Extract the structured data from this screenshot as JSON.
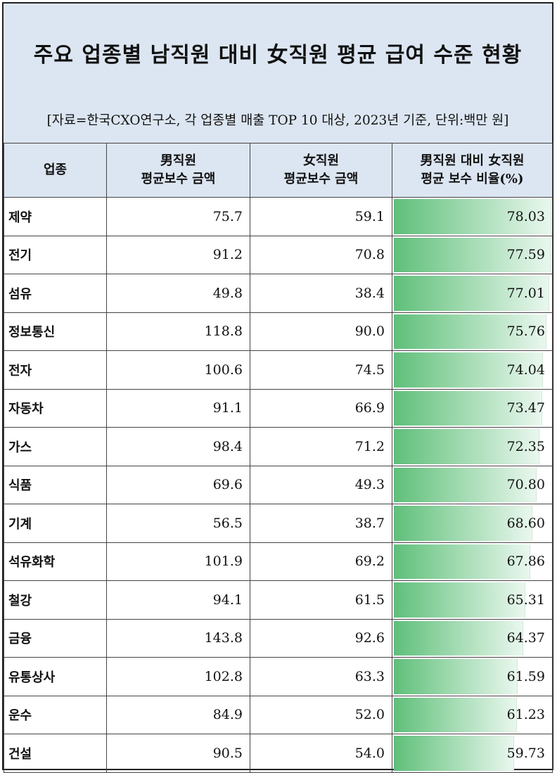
{
  "title": "주요 업종별 남직원 대비 女직원 평균 급여 수준 현황",
  "source": "[자료=한국CXO연구소, 각 업종별 매출 TOP 10 대상, 2023년 기준, 단위:백만 원]",
  "headers": {
    "industry": "업종",
    "male_line1": "男직원",
    "male_line2": "평균보수 금액",
    "female_line1": "女직원",
    "female_line2": "평균보수 금액",
    "ratio_line1": "男직원 대비 女직원",
    "ratio_line2": "평균 보수 비율(%)"
  },
  "colors": {
    "header_bg": "#dce6f2",
    "bar_start": "#5fbf7a",
    "bar_end": "#e9f7ee"
  },
  "chart_data": {
    "type": "table",
    "title": "주요 업종별 남직원 대비 女직원 평균 급여 수준 현황",
    "columns": [
      "업종",
      "男직원 평균보수 금액",
      "女직원 평균보수 금액",
      "男직원 대비 女직원 평균 보수 비율(%)"
    ],
    "ratio_scale_max": 78.03,
    "rows": [
      {
        "industry": "제약",
        "male": "75.7",
        "female": "59.1",
        "ratio": "78.03"
      },
      {
        "industry": "전기",
        "male": "91.2",
        "female": "70.8",
        "ratio": "77.59"
      },
      {
        "industry": "섬유",
        "male": "49.8",
        "female": "38.4",
        "ratio": "77.01"
      },
      {
        "industry": "정보통신",
        "male": "118.8",
        "female": "90.0",
        "ratio": "75.76"
      },
      {
        "industry": "전자",
        "male": "100.6",
        "female": "74.5",
        "ratio": "74.04"
      },
      {
        "industry": "자동차",
        "male": "91.1",
        "female": "66.9",
        "ratio": "73.47"
      },
      {
        "industry": "가스",
        "male": "98.4",
        "female": "71.2",
        "ratio": "72.35"
      },
      {
        "industry": "식품",
        "male": "69.6",
        "female": "49.3",
        "ratio": "70.80"
      },
      {
        "industry": "기계",
        "male": "56.5",
        "female": "38.7",
        "ratio": "68.60"
      },
      {
        "industry": "석유화학",
        "male": "101.9",
        "female": "69.2",
        "ratio": "67.86"
      },
      {
        "industry": "철강",
        "male": "94.1",
        "female": "61.5",
        "ratio": "65.31"
      },
      {
        "industry": "금융",
        "male": "143.8",
        "female": "92.6",
        "ratio": "64.37"
      },
      {
        "industry": "유통상사",
        "male": "102.8",
        "female": "63.3",
        "ratio": "61.59"
      },
      {
        "industry": "운수",
        "male": "84.9",
        "female": "52.0",
        "ratio": "61.23"
      },
      {
        "industry": "건설",
        "male": "90.5",
        "female": "54.0",
        "ratio": "59.73"
      }
    ]
  }
}
